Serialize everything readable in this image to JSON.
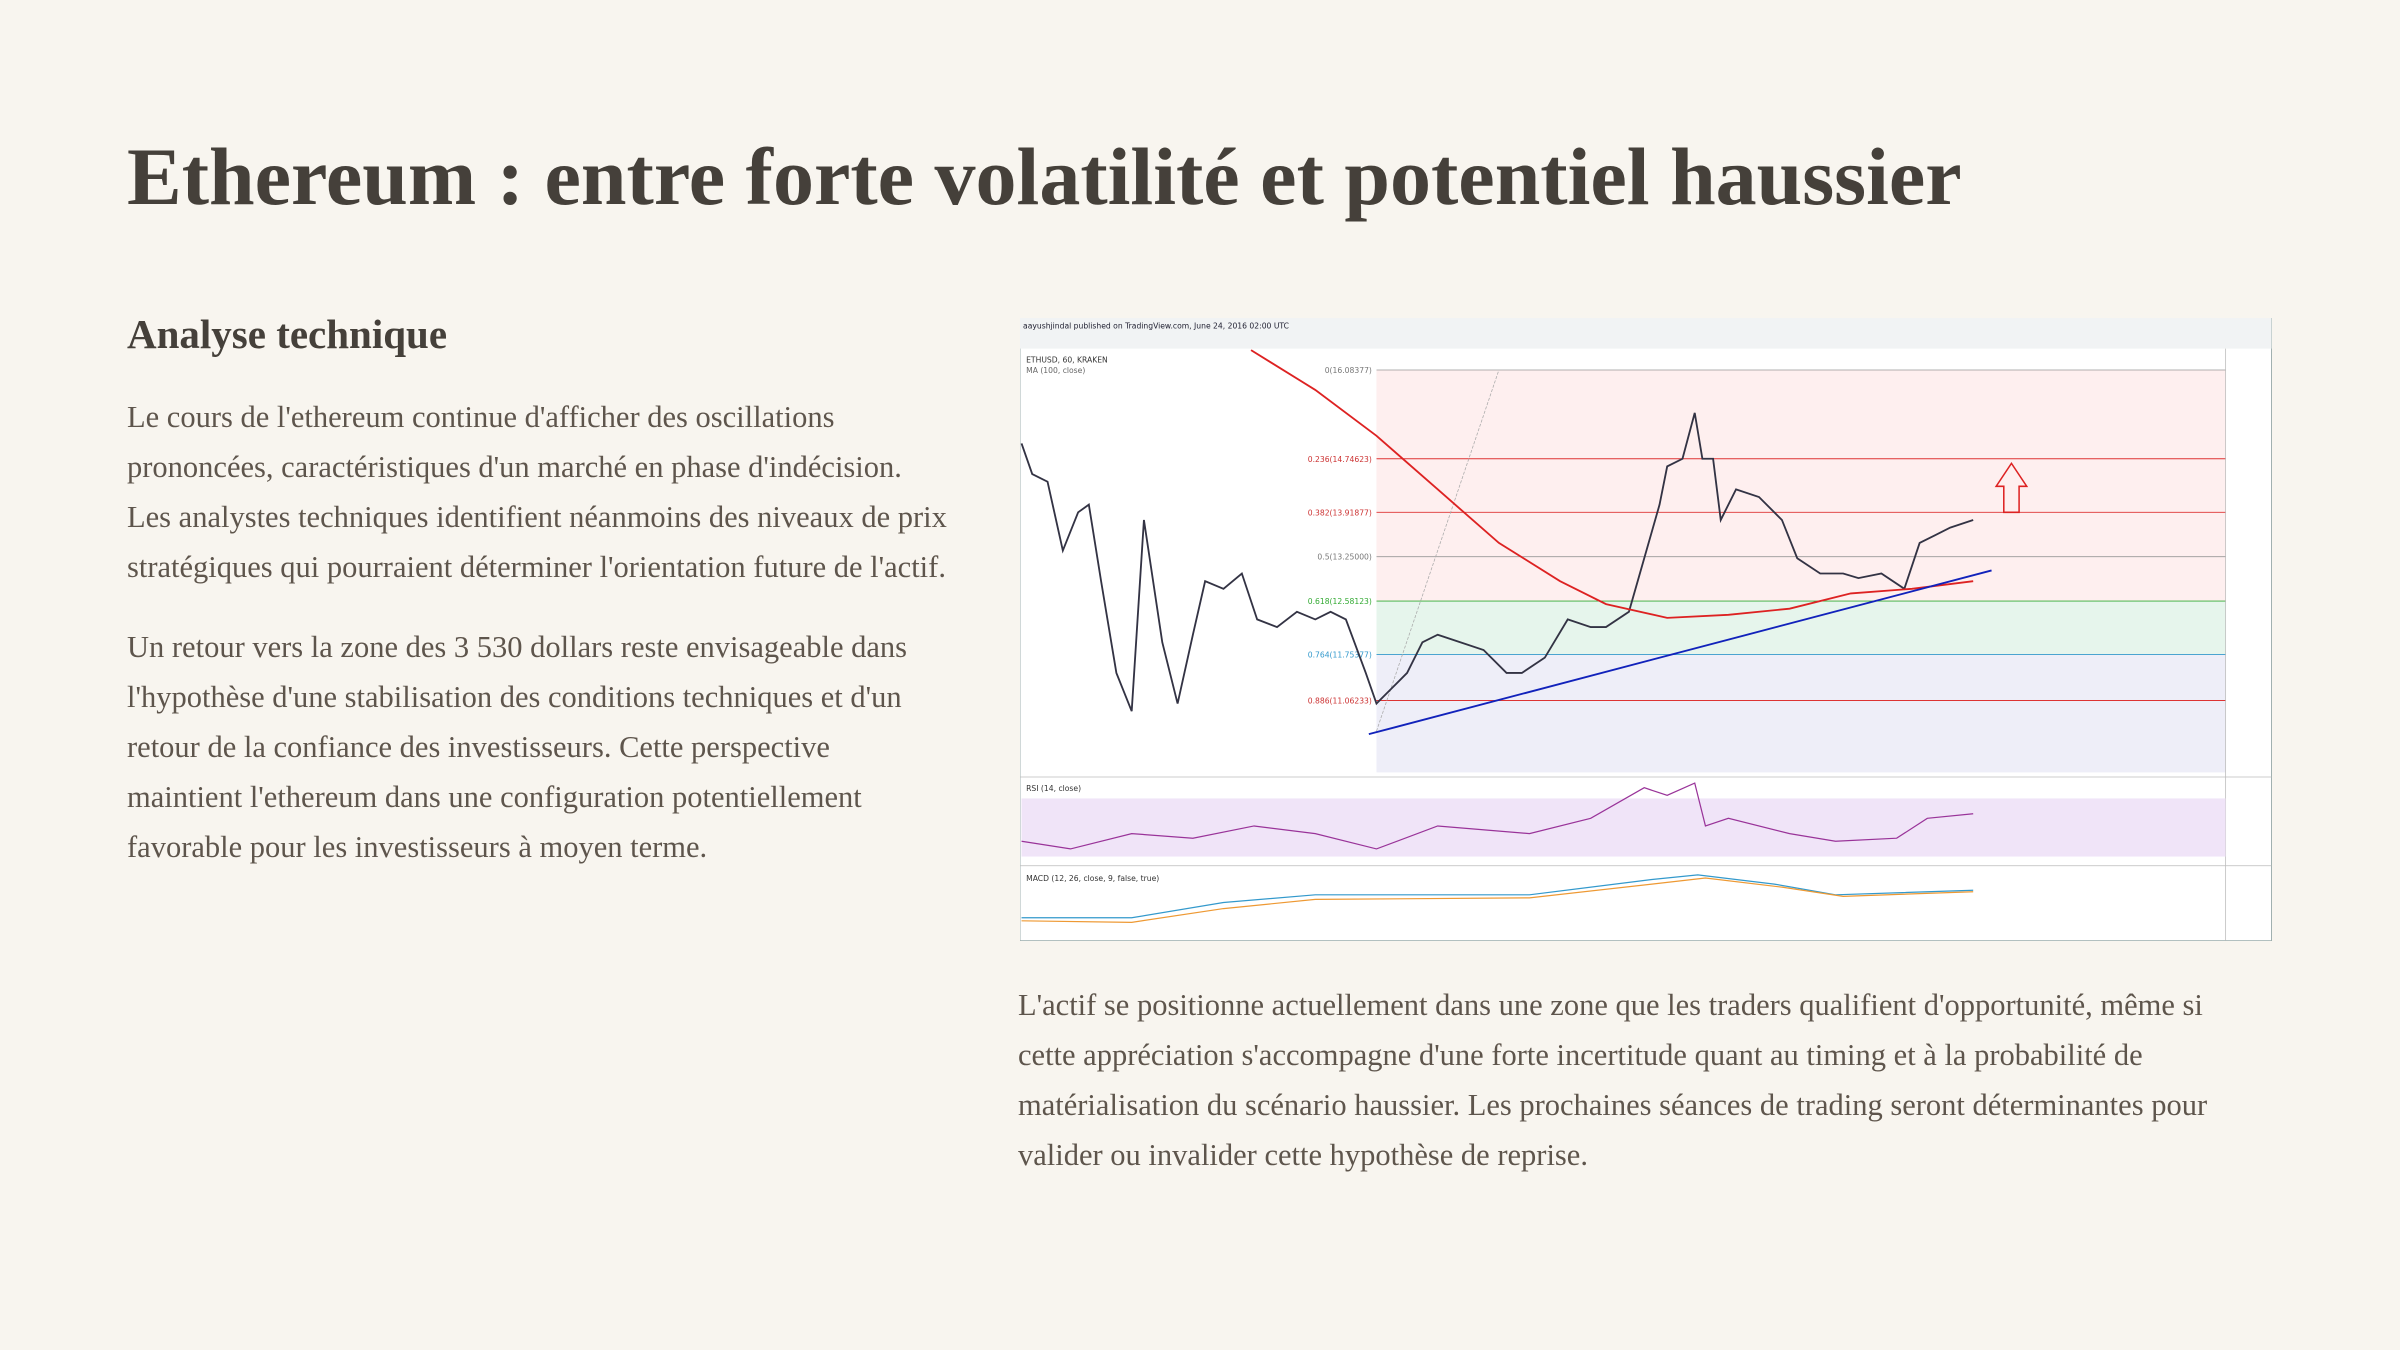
{
  "header": {
    "title": "Ethereum : entre forte volatilité et potentiel haussier"
  },
  "section": {
    "heading": "Analyse technique",
    "paragraphs": [
      "Le cours de l'ethereum continue d'afficher des oscillations prononcées, caractéristiques d'un marché en phase d'indécision. Les analystes techniques identifient néanmoins des niveaux de prix stratégiques qui pourraient déterminer l'orientation future de l'actif.",
      "Un retour vers la zone des 3 530 dollars reste envisageable dans l'hypothèse d'une stabilisation des conditions techniques et d'un retour de la confiance des investisseurs. Cette perspective maintient l'ethereum dans une configuration potentiellement favorable pour les investisseurs à moyen terme."
    ]
  },
  "figure": {
    "caption": "aayushjindal published on TradingView.com, June 24, 2016 02:00 UTC",
    "symbol": "ETHUSD, 60, KRAKEN",
    "ma_label": "MA (100, close)",
    "fib_labels": [
      "0(16.08377)",
      "0.236(14.74623)",
      "0.382(13.91877)",
      "0.5(13.25000)",
      "0.618(12.58123)",
      "0.764(11.75377)",
      "0.886(11.06233)"
    ],
    "rsi_label": "RSI (14, close)",
    "macd_label": "MACD (12, 26, close, 9, false, true)"
  },
  "aside": {
    "paragraph": "L'actif se positionne actuellement dans une zone que les traders qualifient d'opportunité, même si cette appréciation s'accompagne d'une forte incertitude quant au timing et à la probabilité de matérialisation du scénario haussier. Les prochaines séances de trading seront déterminantes pour valider ou invalider cette hypothèse de reprise."
  }
}
